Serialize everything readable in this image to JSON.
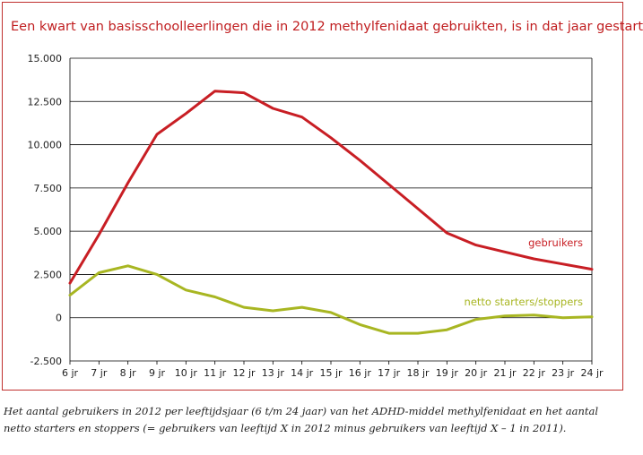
{
  "title": "Een kwart van basisschoolleerlingen die in 2012 methylfenidaat gebruikten, is in dat jaar gestart",
  "caption_line1": "Het aantal gebruikers in 2012 per leeftijdsjaar (6 t/m 24 jaar) van het ADHD-middel methylfenidaat en het aantal",
  "caption_line2": "netto starters en stoppers (= gebruikers van leeftijd X in 2012 minus gebruikers van leeftijd X – 1 in 2011).",
  "chart_data": {
    "type": "line",
    "title": "Een kwart van basisschoolleerlingen die in 2012 methylfenidaat gebruikten, is in dat jaar gestart",
    "xlabel": "",
    "ylabel": "",
    "categories": [
      "6 jr",
      "7 jr",
      "8 jr",
      "9 jr",
      "10 jr",
      "11 jr",
      "12 jr",
      "13 jr",
      "14 jr",
      "15 jr",
      "16 jr",
      "17 jr",
      "18 jr",
      "19 jr",
      "20 jr",
      "21 jr",
      "22 jr",
      "23 jr",
      "24 jr"
    ],
    "y_ticks": [
      -2500,
      0,
      2500,
      5000,
      7500,
      10000,
      12500,
      15000
    ],
    "y_tick_labels": [
      "-2.500",
      "0",
      "2.500",
      "5.000",
      "7.500",
      "10.000",
      "12.500",
      "15.000"
    ],
    "ylim": [
      -2500,
      15000
    ],
    "grid": true,
    "series": [
      {
        "name": "gebruikers",
        "color": "#c81e24",
        "values": [
          2000,
          4800,
          7800,
          10600,
          11800,
          13100,
          13000,
          12100,
          11600,
          10400,
          9100,
          7700,
          6300,
          4900,
          4200,
          3800,
          3400,
          3100,
          2800
        ]
      },
      {
        "name": "netto starters/stoppers",
        "color": "#a8b622",
        "values": [
          1300,
          2600,
          3000,
          2500,
          1600,
          1200,
          600,
          400,
          600,
          300,
          -400,
          -900,
          -900,
          -700,
          -100,
          100,
          150,
          0,
          50
        ]
      }
    ]
  }
}
